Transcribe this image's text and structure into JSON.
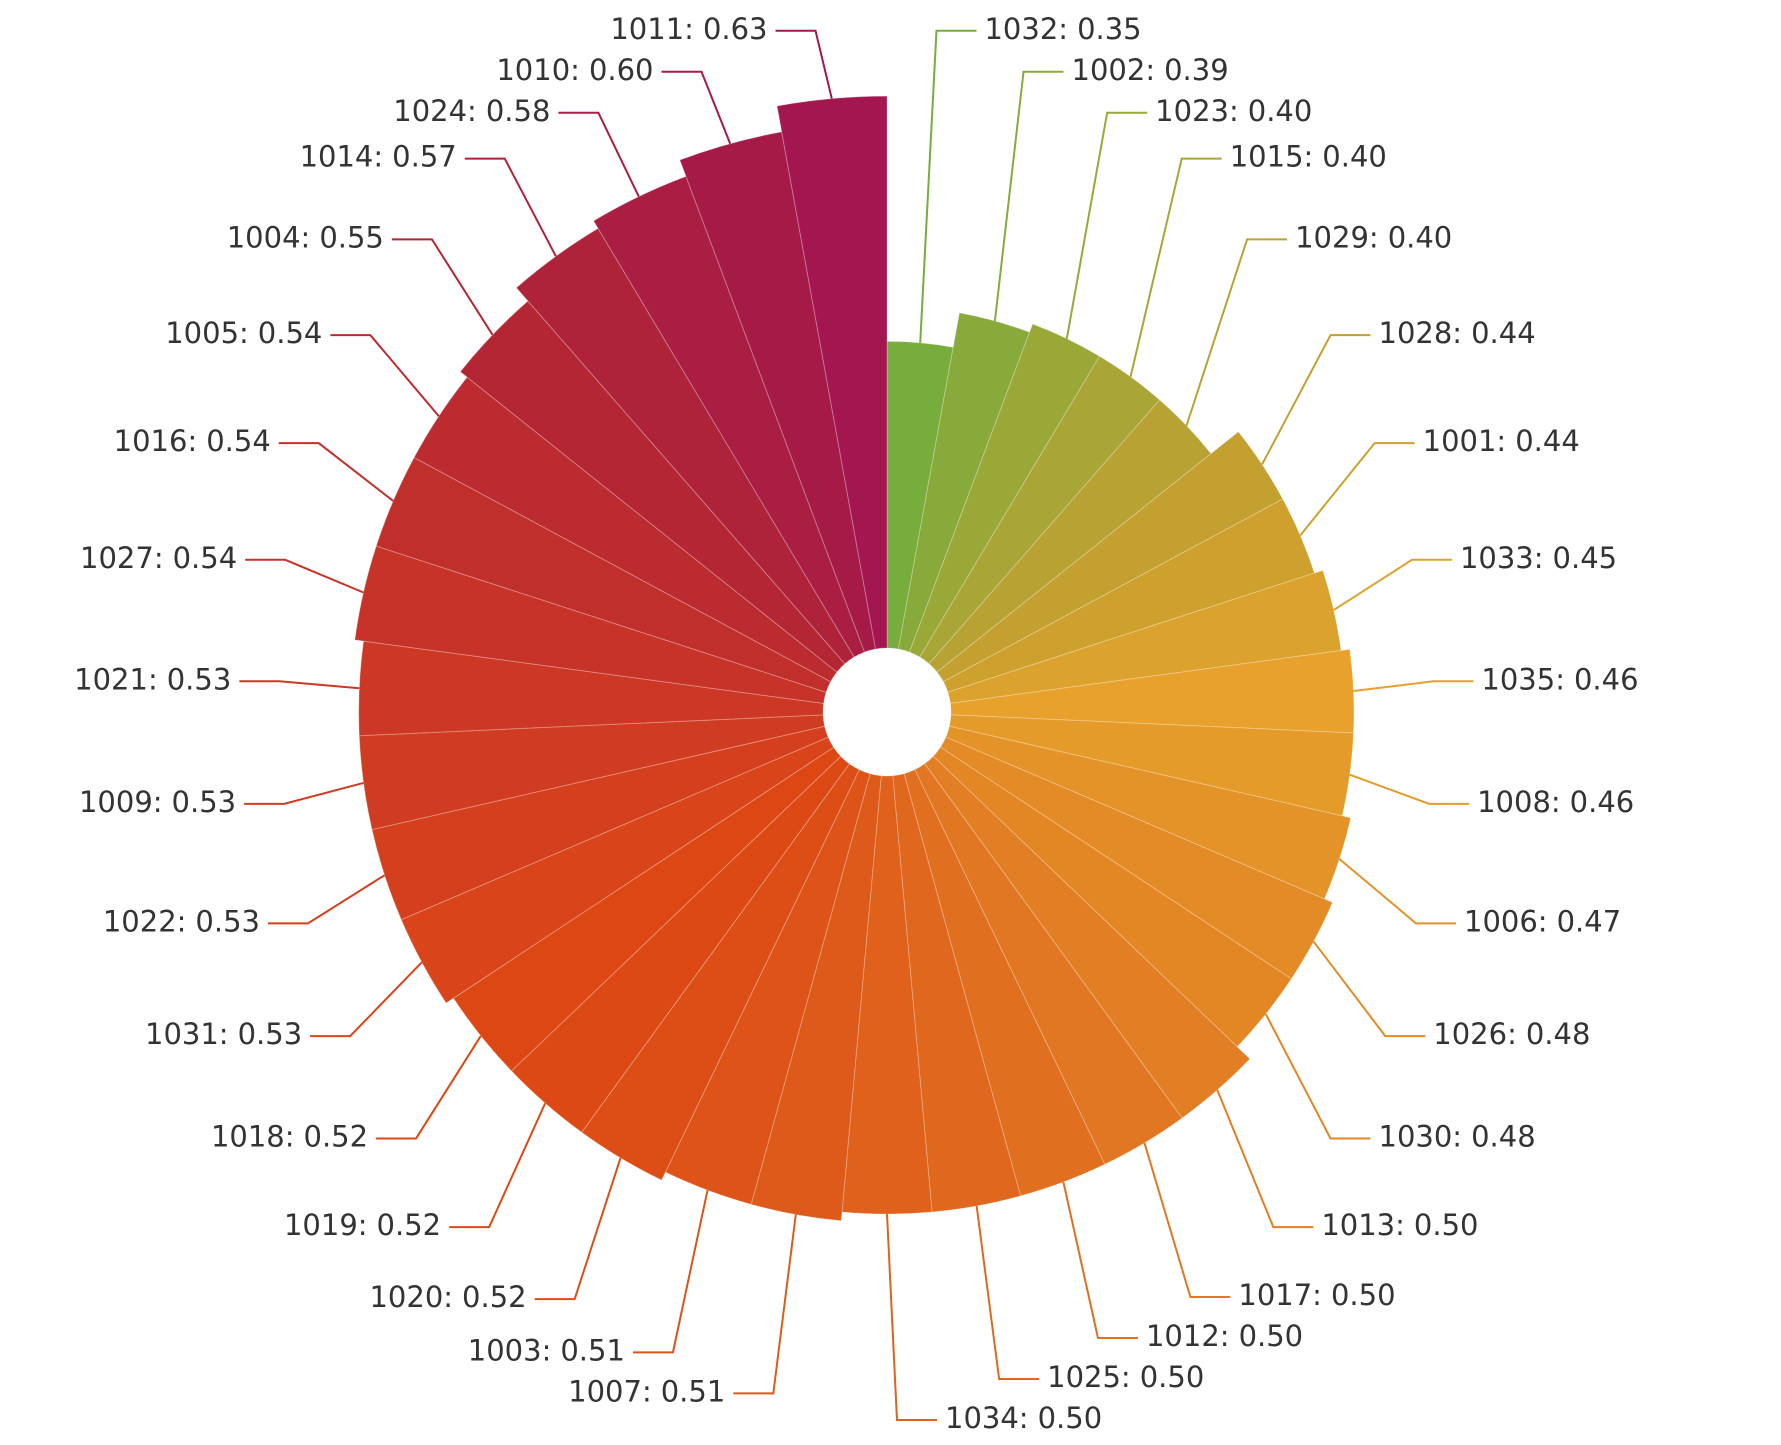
{
  "chart_data": {
    "type": "radial-bar",
    "categories": [
      "1032:",
      "1002:",
      "1023:",
      "1015:",
      "1029:",
      "1028:",
      "1001:",
      "1033:",
      "1035:",
      "1008:",
      "1006:",
      "1026:",
      "1030:",
      "1013:",
      "1017:",
      "1012:",
      "1025:",
      "1034:",
      "1007:",
      "1003:",
      "1020:",
      "1019:",
      "1018:",
      "1031:",
      "1022:",
      "1009:",
      "1021:",
      "1027:",
      "1016:",
      "1005:",
      "1004:",
      "1014:",
      "1024:",
      "1010:",
      "1011:"
    ],
    "values": [
      0.35,
      0.39,
      0.4,
      0.4,
      0.4,
      0.44,
      0.44,
      0.45,
      0.46,
      0.46,
      0.47,
      0.48,
      0.48,
      0.5,
      0.5,
      0.5,
      0.5,
      0.5,
      0.51,
      0.51,
      0.52,
      0.52,
      0.52,
      0.53,
      0.53,
      0.53,
      0.53,
      0.54,
      0.54,
      0.54,
      0.55,
      0.57,
      0.58,
      0.6,
      0.63
    ],
    "value_labels": [
      "0.35",
      "0.39",
      "0.40",
      "0.40",
      "0.40",
      "0.44",
      "0.44",
      "0.45",
      "0.46",
      "0.46",
      "0.47",
      "0.48",
      "0.48",
      "0.50",
      "0.50",
      "0.50",
      "0.50",
      "0.50",
      "0.51",
      "0.51",
      "0.52",
      "0.52",
      "0.52",
      "0.53",
      "0.53",
      "0.53",
      "0.53",
      "0.54",
      "0.54",
      "0.54",
      "0.55",
      "0.57",
      "0.58",
      "0.60",
      "0.63"
    ],
    "colors": [
      "#77ad3b",
      "#88aa3a",
      "#9aa838",
      "#aaa537",
      "#b8a234",
      "#c3a030",
      "#cea12e",
      "#dba22d",
      "#e8a12c",
      "#e49b2a",
      "#e49328",
      "#e38b26",
      "#e38624",
      "#e27e23",
      "#e17722",
      "#e06f20",
      "#df681e",
      "#df611c",
      "#de5a1a",
      "#dd5318",
      "#dc4e16",
      "#dc4914",
      "#dc4713",
      "#d9441a",
      "#d4401e",
      "#d03c22",
      "#cc3825",
      "#c73328",
      "#c12f2c",
      "#bb2b30",
      "#b42634",
      "#ae223a",
      "#a91e42",
      "#a61a48",
      "#a3164f"
    ]
  }
}
